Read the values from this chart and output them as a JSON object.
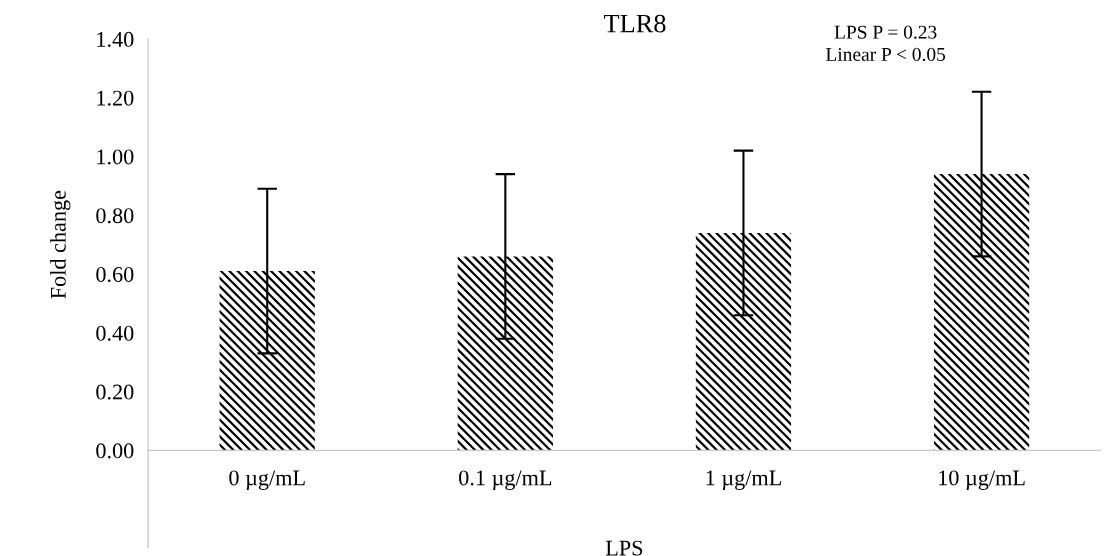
{
  "chart_data": {
    "type": "bar",
    "title": "TLR8",
    "xlabel": "LPS",
    "ylabel": "Fold change",
    "categories": [
      "0 µg/mL",
      "0.1 µg/mL",
      "1 µg/mL",
      "10 µg/mL"
    ],
    "values": [
      0.61,
      0.66,
      0.74,
      0.94
    ],
    "errors": [
      0.28,
      0.28,
      0.28,
      0.28
    ],
    "color": "#000000",
    "ylim": [
      0,
      1.4
    ],
    "yticks": [
      {
        "value": 0,
        "label": "0.00"
      },
      {
        "value": 0.2,
        "label": "0.20"
      },
      {
        "value": 0.4,
        "label": "0.40"
      },
      {
        "value": 0.6,
        "label": "0.60"
      },
      {
        "value": 0.8,
        "label": "0.80"
      },
      {
        "value": 1.0,
        "label": "1.00"
      },
      {
        "value": 1.2,
        "label": "1.20"
      },
      {
        "value": 1.4,
        "label": "1.40"
      }
    ],
    "annotations": [
      "LPS P = 0.23",
      "Linear P < 0.05"
    ],
    "grid": false,
    "legend": false
  }
}
